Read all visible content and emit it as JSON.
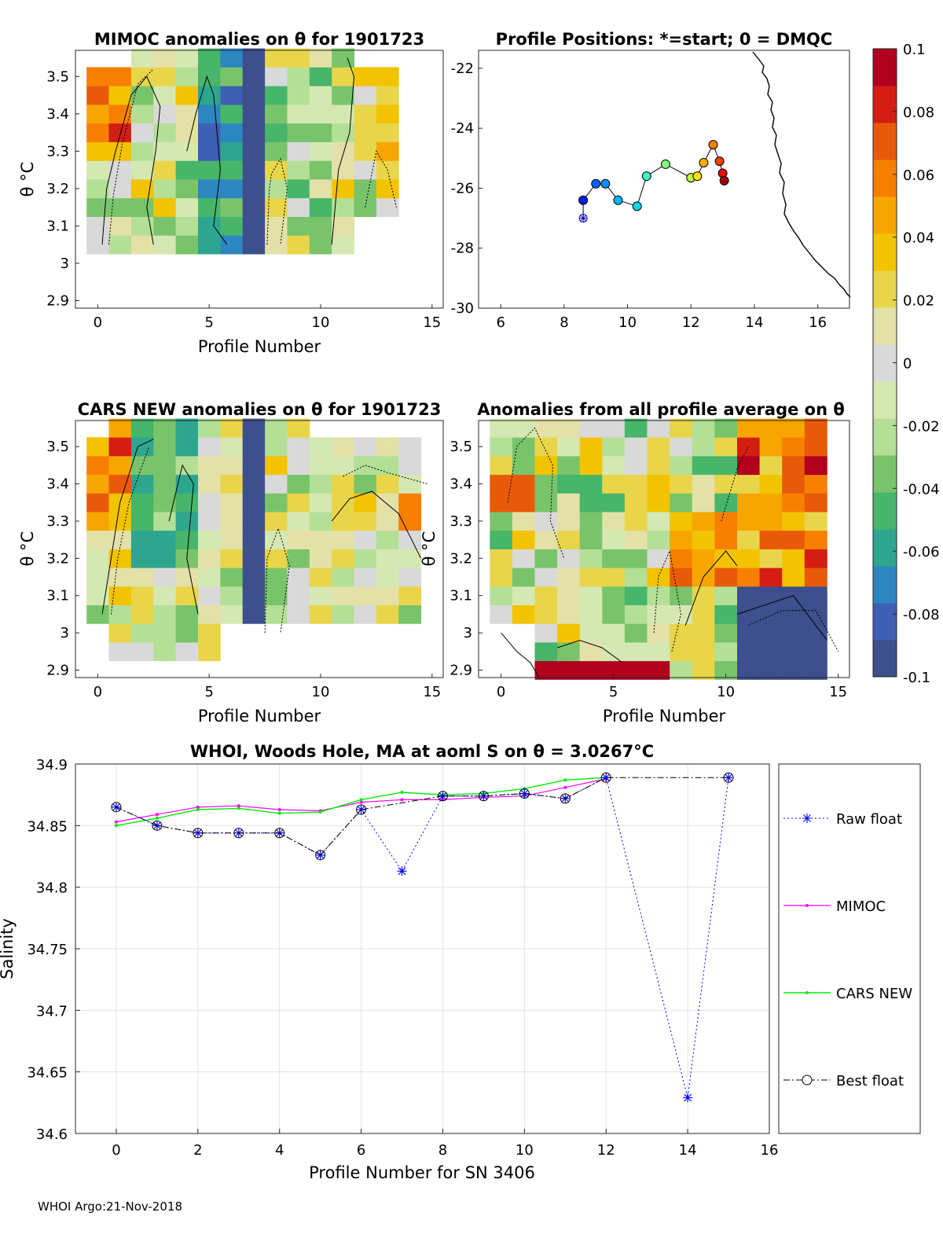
{
  "footer": "WHOI Argo:21-Nov-2018",
  "colors": {
    "raw_float": "#0000ff",
    "mimoc": "#ff00ff",
    "cars_new": "#00ee00",
    "best_float": "#000000",
    "colormap": [
      "#3d4f8c",
      "#3f5fb5",
      "#2e86c0",
      "#2ea58f",
      "#47b56a",
      "#79c46b",
      "#b4df97",
      "#d5e8b3",
      "#d9d9d9",
      "#e3e1a8",
      "#e9d54a",
      "#f2c300",
      "#f7a600",
      "#f77f00",
      "#e85a0a",
      "#d41d13",
      "#b0001e"
    ]
  },
  "panels": {
    "mimoc": {
      "title": "MIMOC anomalies on θ  for 1901723",
      "xlabel": "Profile Number",
      "ylabel": "θ °C",
      "xlim": [
        -1,
        15.5
      ],
      "ylim": [
        2.88,
        3.57
      ],
      "xticks": [
        "0",
        "5",
        "10",
        "15"
      ],
      "yticks": [
        "2.9",
        "3",
        "3.1",
        "3.2",
        "3.3",
        "3.4",
        "3.5"
      ]
    },
    "positions": {
      "title": "Profile Positions: *=start; 0 = DMQC",
      "xlim": [
        5.3,
        17
      ],
      "ylim": [
        -30,
        -21.4
      ],
      "xticks": [
        "6",
        "8",
        "10",
        "12",
        "14",
        "16"
      ],
      "yticks": [
        "-22",
        "-24",
        "-26",
        "-28",
        "-30"
      ],
      "lon": [
        8.6,
        8.6,
        9.0,
        9.3,
        9.7,
        10.3,
        10.6,
        11.2,
        12.0,
        12.2,
        12.4,
        12.7,
        12.9,
        13.0,
        13.05
      ],
      "lat": [
        -27.0,
        -26.4,
        -25.85,
        -25.85,
        -26.4,
        -26.6,
        -25.6,
        -25.2,
        -25.65,
        -25.6,
        -25.15,
        -24.55,
        -25.1,
        -25.5,
        -25.75
      ]
    },
    "cars": {
      "title": "CARS NEW anomalies on θ for 1901723",
      "xlabel": "Profile Number",
      "ylabel": "θ °C",
      "xlim": [
        -1,
        15.5
      ],
      "ylim": [
        2.88,
        3.57
      ],
      "xticks": [
        "0",
        "5",
        "10",
        "15"
      ],
      "yticks": [
        "2.9",
        "3",
        "3.1",
        "3.2",
        "3.3",
        "3.4",
        "3.5"
      ]
    },
    "anom": {
      "title": "Anomalies from all profile average on θ",
      "xlabel": "Profile Number",
      "ylabel": "θ °C",
      "xlim": [
        -1,
        15.5
      ],
      "ylim": [
        2.88,
        3.57
      ],
      "xticks": [
        "0",
        "5",
        "10",
        "15"
      ],
      "yticks": [
        "2.9",
        "3",
        "3.1",
        "3.2",
        "3.3",
        "3.4",
        "3.5"
      ]
    }
  },
  "colorbar": {
    "min": -0.1,
    "max": 0.1,
    "ticks": [
      "0.1",
      "0.08",
      "0.06",
      "0.04",
      "0.02",
      "0",
      "-0.02",
      "-0.04",
      "-0.06",
      "-0.08",
      "-0.1"
    ]
  },
  "chart_data": {
    "type": "line",
    "title": "WHOI, Woods Hole, MA at aoml S on θ = 3.0267°C",
    "xlabel": "Profile Number for SN 3406",
    "ylabel": "Salinity",
    "xlim": [
      -1,
      16
    ],
    "ylim": [
      34.6,
      34.9
    ],
    "xticks": [
      "0",
      "2",
      "4",
      "6",
      "8",
      "10",
      "12",
      "14",
      "16"
    ],
    "yticks": [
      "34.6",
      "34.65",
      "34.7",
      "34.75",
      "34.8",
      "34.85",
      "34.9"
    ],
    "grid": true,
    "legend": [
      "Raw float",
      "MIMOC",
      "CARS NEW",
      "Best float"
    ],
    "series": [
      {
        "name": "Raw float",
        "x": [
          0,
          1,
          2,
          3,
          4,
          5,
          6,
          7,
          8,
          9,
          10,
          11,
          12,
          14,
          15
        ],
        "y": [
          34.865,
          34.85,
          34.844,
          34.844,
          34.844,
          34.826,
          34.863,
          34.813,
          34.874,
          34.874,
          34.876,
          34.872,
          34.889,
          34.629,
          34.889
        ]
      },
      {
        "name": "MIMOC",
        "x": [
          0,
          1,
          2,
          3,
          4,
          5,
          6,
          7,
          8,
          9,
          10,
          11,
          12
        ],
        "y": [
          34.853,
          34.859,
          34.865,
          34.866,
          34.863,
          34.862,
          34.869,
          34.871,
          34.871,
          34.873,
          34.874,
          34.881,
          34.888
        ]
      },
      {
        "name": "CARS NEW",
        "x": [
          0,
          1,
          2,
          3,
          4,
          5,
          6,
          7,
          8,
          9,
          10,
          11,
          12
        ],
        "y": [
          34.85,
          34.856,
          34.863,
          34.864,
          34.86,
          34.861,
          34.871,
          34.877,
          34.875,
          34.876,
          34.88,
          34.887,
          34.889
        ]
      },
      {
        "name": "Best float",
        "x": [
          0,
          1,
          2,
          3,
          4,
          5,
          6,
          8,
          9,
          10,
          11,
          12,
          15
        ],
        "y": [
          34.865,
          34.85,
          34.844,
          34.844,
          34.844,
          34.826,
          34.863,
          34.874,
          34.874,
          34.876,
          34.872,
          34.889,
          34.889
        ]
      }
    ]
  }
}
